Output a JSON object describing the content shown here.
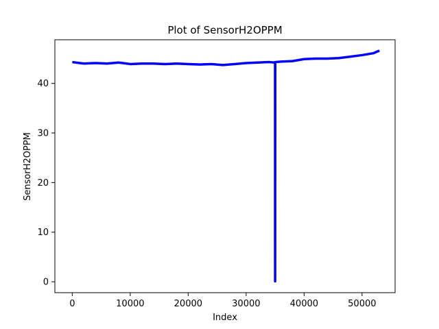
{
  "chart_data": {
    "type": "line",
    "title": "Plot of SensorH2OPPM",
    "xlabel": "Index",
    "ylabel": "SensorH2OPPM",
    "xlim": [
      -3000,
      55700
    ],
    "ylim": [
      -2.2,
      48.8
    ],
    "xticks": [
      0,
      10000,
      20000,
      30000,
      40000,
      50000
    ],
    "yticks": [
      0,
      10,
      20,
      30,
      40
    ],
    "grid": false,
    "legend": "none",
    "series_color": "#0000ff",
    "series": [
      {
        "x": [
          0,
          2000,
          4000,
          6000,
          8000,
          10000,
          12000,
          14000,
          16000,
          18000,
          20000,
          22000,
          24000,
          26000,
          28000,
          30000,
          32000,
          34000,
          34990,
          35000,
          35020,
          36000,
          38000,
          40000,
          42000,
          44000,
          46000,
          48000,
          50000,
          52000,
          53000
        ],
        "values": [
          44.3,
          44.0,
          44.1,
          44.0,
          44.2,
          43.9,
          44.0,
          44.0,
          43.9,
          44.0,
          43.9,
          43.8,
          43.9,
          43.7,
          43.9,
          44.1,
          44.2,
          44.3,
          44.2,
          0.1,
          44.3,
          44.4,
          44.5,
          44.9,
          45.0,
          45.0,
          45.1,
          45.4,
          45.7,
          46.1,
          46.6
        ]
      }
    ]
  }
}
